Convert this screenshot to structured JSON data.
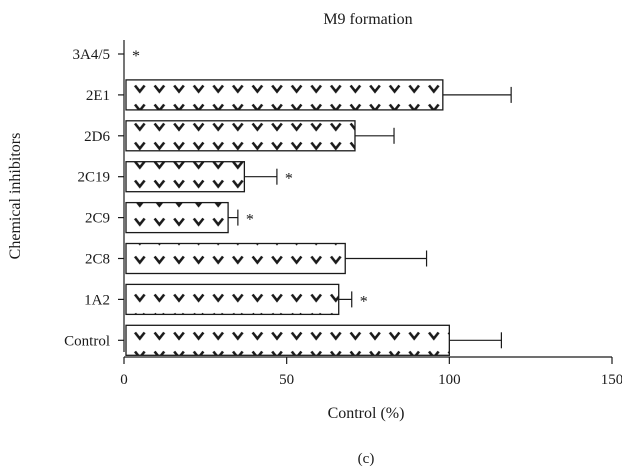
{
  "chart_data": {
    "type": "bar",
    "orientation": "horizontal",
    "title": "M9 formation",
    "xlabel": "Control (%)",
    "ylabel": "Chemical inhibitors",
    "xlim": [
      0,
      150
    ],
    "xticks": [
      0,
      50,
      100,
      150
    ],
    "categories": [
      "Control",
      "1A2",
      "2C8",
      "2C9",
      "2C19",
      "2D6",
      "2E1",
      "3A4/5"
    ],
    "values": [
      100,
      66,
      68,
      32,
      37,
      71,
      98,
      0
    ],
    "error_plus": [
      16,
      4,
      25,
      3,
      10,
      12,
      21,
      0
    ],
    "significance": [
      "",
      "*",
      "",
      "*",
      "*",
      "",
      "",
      "*"
    ],
    "legend": "none",
    "grid": false
  },
  "caption": "(c)",
  "colors": {
    "axis": "#1a1a1a",
    "bar_fill": "#ffffff",
    "pattern": "#1a1a1a"
  }
}
